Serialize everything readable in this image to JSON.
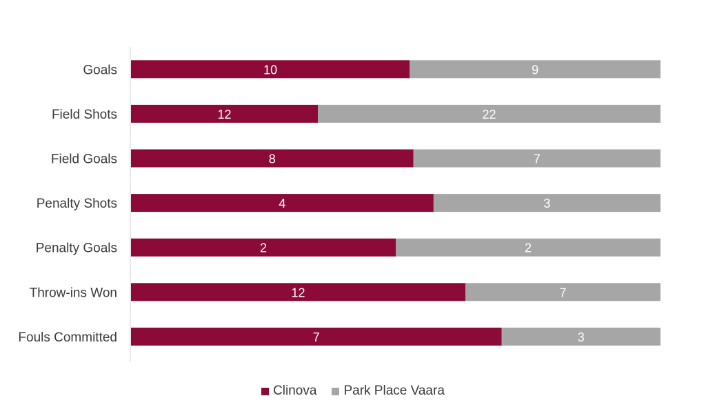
{
  "chart_data": {
    "type": "bar",
    "orientation": "horizontal",
    "stacking": "percent",
    "categories": [
      "Goals",
      "Field Shots",
      "Field Goals",
      "Penalty Shots",
      "Penalty Goals",
      "Throw-ins Won",
      "Fouls Committed"
    ],
    "series": [
      {
        "name": "Clinova",
        "color": "#8b0a38",
        "values": [
          10,
          12,
          8,
          4,
          2,
          12,
          7
        ]
      },
      {
        "name": "Park Place Vaara",
        "color": "#a6a6a6",
        "values": [
          9,
          22,
          7,
          3,
          2,
          7,
          3
        ]
      }
    ],
    "title": "",
    "xlabel": "",
    "ylabel": "",
    "grid": false,
    "legend_position": "bottom"
  }
}
